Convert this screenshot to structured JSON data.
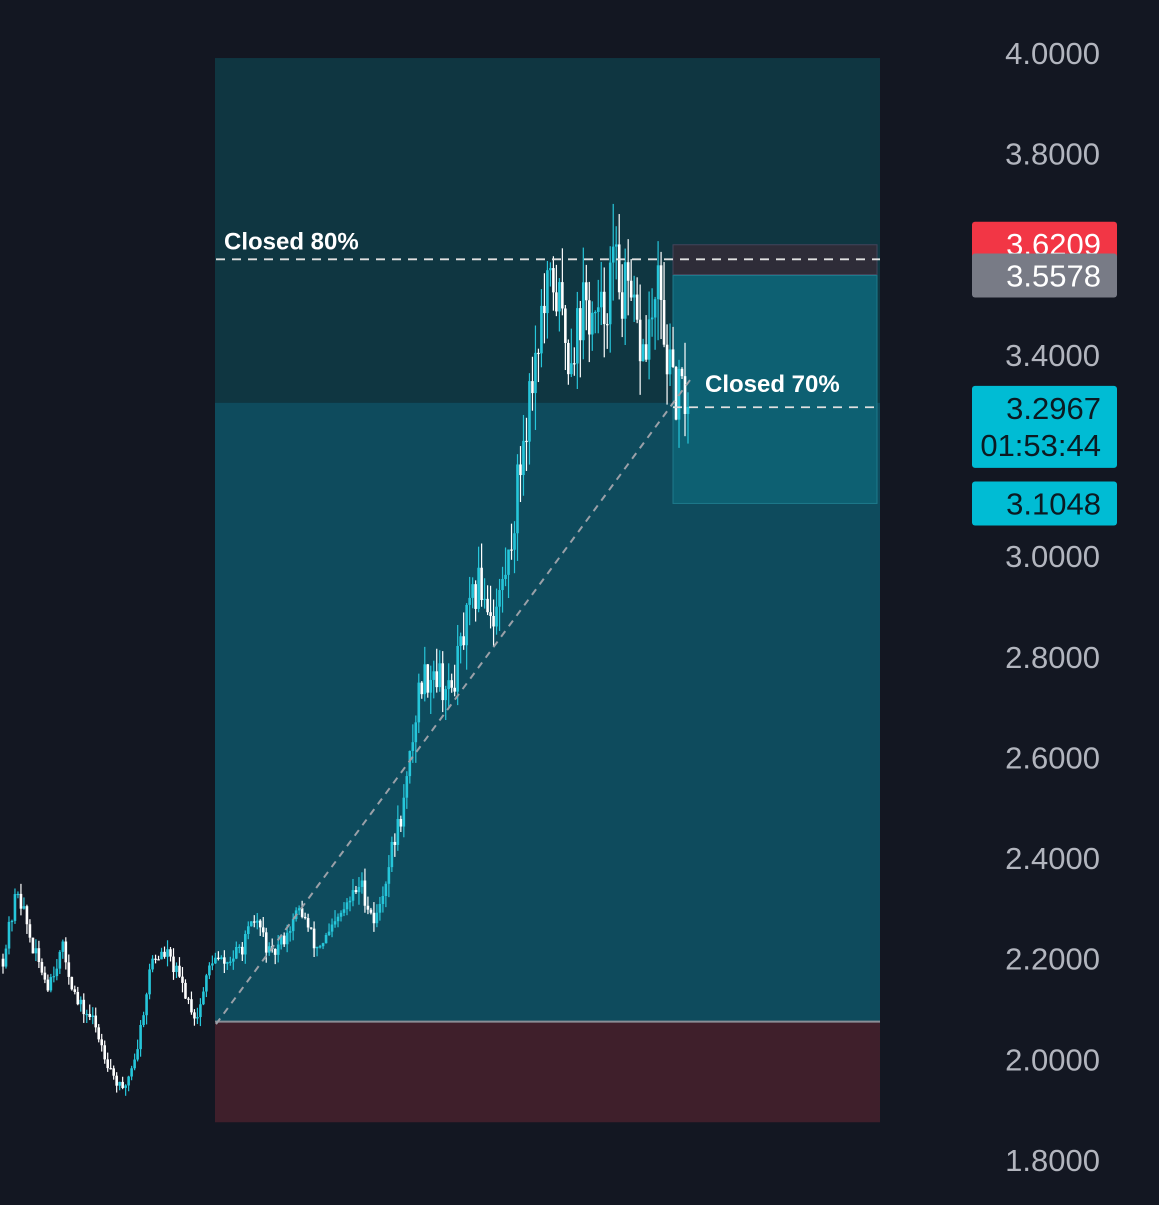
{
  "chart_data": {
    "type": "candlestick",
    "title": "",
    "xlabel": "",
    "ylabel": "",
    "ylim": [
      1.8,
      4.0
    ],
    "grid": false,
    "legend": "none",
    "y_ticks": [
      "4.0000",
      "3.8000",
      "3.4000",
      "3.0000",
      "2.8000",
      "2.6000",
      "2.4000",
      "2.2000",
      "2.0000",
      "1.8000"
    ],
    "annotations": [
      {
        "text": "Closed 80%",
        "price": 3.59
      },
      {
        "text": "Closed 70%",
        "price": 3.3
      }
    ],
    "price_labels": [
      {
        "id": "stop",
        "text": "3.6209",
        "price": 3.6209,
        "color": "#f23645"
      },
      {
        "id": "entry",
        "text": "3.5578",
        "price": 3.5578,
        "color": "#787b86"
      },
      {
        "id": "last",
        "text": "3.2967",
        "price": 3.2967,
        "color": "#00bcd4",
        "countdown": "01:53:44"
      },
      {
        "id": "target",
        "text": "3.1048",
        "price": 3.1048,
        "color": "#00bcd4"
      }
    ],
    "positions": [
      {
        "name": "long-position",
        "entry": 2.075,
        "stop": 1.875,
        "target": 3.99,
        "target_zone_bottom": 3.305
      },
      {
        "name": "short-position",
        "entry": 3.5578,
        "stop": 3.6209,
        "target": 3.1048
      }
    ],
    "price_waypoints": [
      2.2,
      2.34,
      2.22,
      2.15,
      2.22,
      2.11,
      2.08,
      2.0,
      1.93,
      2.02,
      2.2,
      2.21,
      2.15,
      2.08,
      2.2,
      2.19,
      2.22,
      2.28,
      2.2,
      2.25,
      2.3,
      2.22,
      2.25,
      2.3,
      2.35,
      2.27,
      2.4,
      2.52,
      2.75,
      2.78,
      2.72,
      2.85,
      2.95,
      2.88,
      3.0,
      3.25,
      3.45,
      3.55,
      3.4,
      3.5,
      3.45,
      3.58,
      3.5,
      3.4,
      3.52,
      3.32,
      3.31
    ]
  },
  "colors": {
    "background": "#131722",
    "up_candle": "#26c6da",
    "down_candle": "#ffffff",
    "axis_text": "#b2b5be",
    "target_zone": "#0e4b5d",
    "target_zone_upper": "#0f3641",
    "stop_zone": "#3f1f2b"
  }
}
